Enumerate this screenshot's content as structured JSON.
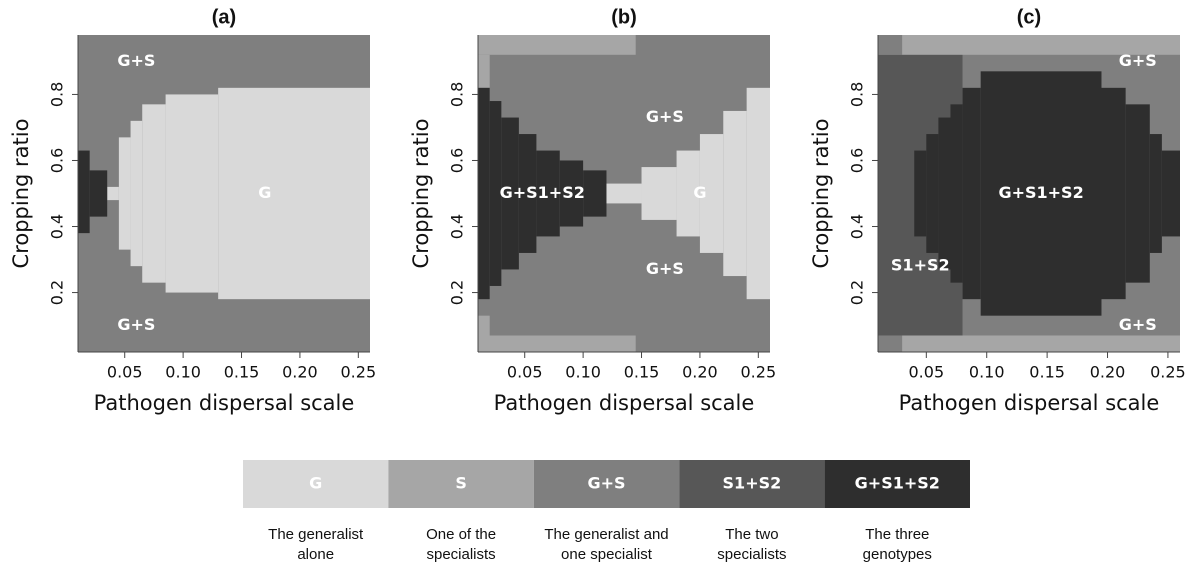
{
  "chart_data": [
    {
      "type": "region-map",
      "title": "(a)",
      "x_label": "Pathogen dispersal scale",
      "y_label": "Cropping ratio",
      "xlim": [
        0.01,
        0.26
      ],
      "ylim": [
        0.02,
        0.98
      ],
      "xticks": [
        0.05,
        {
          "value": 0.1,
          "label": "0.10"
        },
        0.15,
        {
          "value": 0.2,
          "label": "0.20"
        },
        0.25
      ],
      "yticks": [
        0.2,
        0.4,
        0.6,
        0.8
      ],
      "background": "#7f7f7f",
      "regions": [
        {
          "color": "#d9d9d9",
          "rect": [
            0.035,
            0.045,
            0.48,
            0.52
          ]
        },
        {
          "color": "#d9d9d9",
          "rect": [
            0.045,
            0.055,
            0.33,
            0.67
          ]
        },
        {
          "color": "#d9d9d9",
          "rect": [
            0.055,
            0.065,
            0.28,
            0.72
          ]
        },
        {
          "color": "#d9d9d9",
          "rect": [
            0.065,
            0.085,
            0.23,
            0.77
          ]
        },
        {
          "color": "#d9d9d9",
          "rect": [
            0.085,
            0.13,
            0.2,
            0.8
          ]
        },
        {
          "color": "#d9d9d9",
          "rect": [
            0.13,
            0.26,
            0.18,
            0.82
          ]
        },
        {
          "color": "#2e2e2e",
          "rect": [
            0.01,
            0.02,
            0.38,
            0.63
          ]
        },
        {
          "color": "#2e2e2e",
          "rect": [
            0.02,
            0.035,
            0.43,
            0.57
          ]
        }
      ],
      "labels": [
        "G+S",
        "G",
        "G+S"
      ]
    },
    {
      "type": "region-map",
      "title": "(b)",
      "x_label": "Pathogen dispersal scale",
      "y_label": "Cropping ratio",
      "xlim": [
        0.01,
        0.26
      ],
      "ylim": [
        0.02,
        0.98
      ],
      "xticks": [
        0.05,
        {
          "value": 0.1,
          "label": "0.10"
        },
        0.15,
        {
          "value": 0.2,
          "label": "0.20"
        },
        0.25
      ],
      "yticks": [
        0.2,
        0.4,
        0.6,
        0.8
      ],
      "background": "#7f7f7f",
      "regions": [
        {
          "color": "#a6a6a6",
          "rect": [
            0.01,
            0.145,
            0.92,
            0.98
          ]
        },
        {
          "color": "#a6a6a6",
          "rect": [
            0.01,
            0.145,
            0.02,
            0.07
          ]
        },
        {
          "color": "#a6a6a6",
          "rect": [
            0.01,
            0.02,
            0.82,
            0.92
          ]
        },
        {
          "color": "#a6a6a6",
          "rect": [
            0.01,
            0.02,
            0.07,
            0.13
          ]
        },
        {
          "color": "#2e2e2e",
          "rect": [
            0.01,
            0.02,
            0.18,
            0.82
          ]
        },
        {
          "color": "#2e2e2e",
          "rect": [
            0.02,
            0.03,
            0.22,
            0.78
          ]
        },
        {
          "color": "#2e2e2e",
          "rect": [
            0.03,
            0.045,
            0.27,
            0.73
          ]
        },
        {
          "color": "#2e2e2e",
          "rect": [
            0.045,
            0.06,
            0.32,
            0.68
          ]
        },
        {
          "color": "#2e2e2e",
          "rect": [
            0.06,
            0.08,
            0.37,
            0.63
          ]
        },
        {
          "color": "#2e2e2e",
          "rect": [
            0.08,
            0.1,
            0.4,
            0.6
          ]
        },
        {
          "color": "#2e2e2e",
          "rect": [
            0.1,
            0.12,
            0.43,
            0.57
          ]
        },
        {
          "color": "#d9d9d9",
          "rect": [
            0.12,
            0.15,
            0.47,
            0.53
          ]
        },
        {
          "color": "#d9d9d9",
          "rect": [
            0.15,
            0.18,
            0.42,
            0.58
          ]
        },
        {
          "color": "#d9d9d9",
          "rect": [
            0.18,
            0.2,
            0.37,
            0.63
          ]
        },
        {
          "color": "#d9d9d9",
          "rect": [
            0.2,
            0.22,
            0.32,
            0.68
          ]
        },
        {
          "color": "#d9d9d9",
          "rect": [
            0.22,
            0.24,
            0.25,
            0.75
          ]
        },
        {
          "color": "#d9d9d9",
          "rect": [
            0.24,
            0.26,
            0.18,
            0.82
          ]
        }
      ],
      "labels": [
        "G+S",
        "G+S1+S2",
        "G",
        "G+S"
      ]
    },
    {
      "type": "region-map",
      "title": "(c)",
      "x_label": "Pathogen dispersal scale",
      "y_label": "Cropping ratio",
      "xlim": [
        0.01,
        0.26
      ],
      "ylim": [
        0.02,
        0.98
      ],
      "xticks": [
        0.05,
        {
          "value": 0.1,
          "label": "0.10"
        },
        0.15,
        {
          "value": 0.2,
          "label": "0.20"
        },
        0.25
      ],
      "yticks": [
        0.2,
        0.4,
        0.6,
        0.8
      ],
      "background": "#a6a6a6",
      "regions": [
        {
          "color": "#7f7f7f",
          "rect": [
            0.01,
            0.03,
            0.92,
            0.98
          ]
        },
        {
          "color": "#7f7f7f",
          "rect": [
            0.01,
            0.03,
            0.02,
            0.07
          ]
        },
        {
          "color": "#7f7f7f",
          "rect": [
            0.08,
            0.26,
            0.07,
            0.92
          ]
        },
        {
          "color": "#575757",
          "rect": [
            0.01,
            0.08,
            0.07,
            0.92
          ]
        },
        {
          "color": "#2e2e2e",
          "rect": [
            0.04,
            0.05,
            0.37,
            0.63
          ]
        },
        {
          "color": "#2e2e2e",
          "rect": [
            0.05,
            0.06,
            0.32,
            0.68
          ]
        },
        {
          "color": "#2e2e2e",
          "rect": [
            0.06,
            0.07,
            0.27,
            0.73
          ]
        },
        {
          "color": "#2e2e2e",
          "rect": [
            0.07,
            0.08,
            0.23,
            0.77
          ]
        },
        {
          "color": "#2e2e2e",
          "rect": [
            0.08,
            0.095,
            0.18,
            0.82
          ]
        },
        {
          "color": "#2e2e2e",
          "rect": [
            0.095,
            0.195,
            0.13,
            0.87
          ]
        },
        {
          "color": "#2e2e2e",
          "rect": [
            0.195,
            0.215,
            0.18,
            0.82
          ]
        },
        {
          "color": "#2e2e2e",
          "rect": [
            0.215,
            0.235,
            0.23,
            0.77
          ]
        },
        {
          "color": "#2e2e2e",
          "rect": [
            0.235,
            0.245,
            0.32,
            0.68
          ]
        },
        {
          "color": "#2e2e2e",
          "rect": [
            0.245,
            0.26,
            0.37,
            0.63
          ]
        }
      ],
      "labels": [
        "G+S",
        "G+S1+S2",
        "S1+S2",
        "G+S"
      ]
    }
  ],
  "legend": {
    "items": [
      {
        "name": "G",
        "color": "#d9d9d9",
        "description": [
          "The generalist",
          "alone"
        ]
      },
      {
        "name": "S",
        "color": "#a6a6a6",
        "description": [
          "One of the",
          "specialists"
        ]
      },
      {
        "name": "G+S",
        "color": "#7f7f7f",
        "description": [
          "The generalist and",
          "one specialist"
        ]
      },
      {
        "name": "S1+S2",
        "color": "#575757",
        "description": [
          "The two",
          "specialists"
        ]
      },
      {
        "name": "G+S1+S2",
        "color": "#2e2e2e",
        "description": [
          "The three",
          "genotypes"
        ]
      }
    ]
  }
}
